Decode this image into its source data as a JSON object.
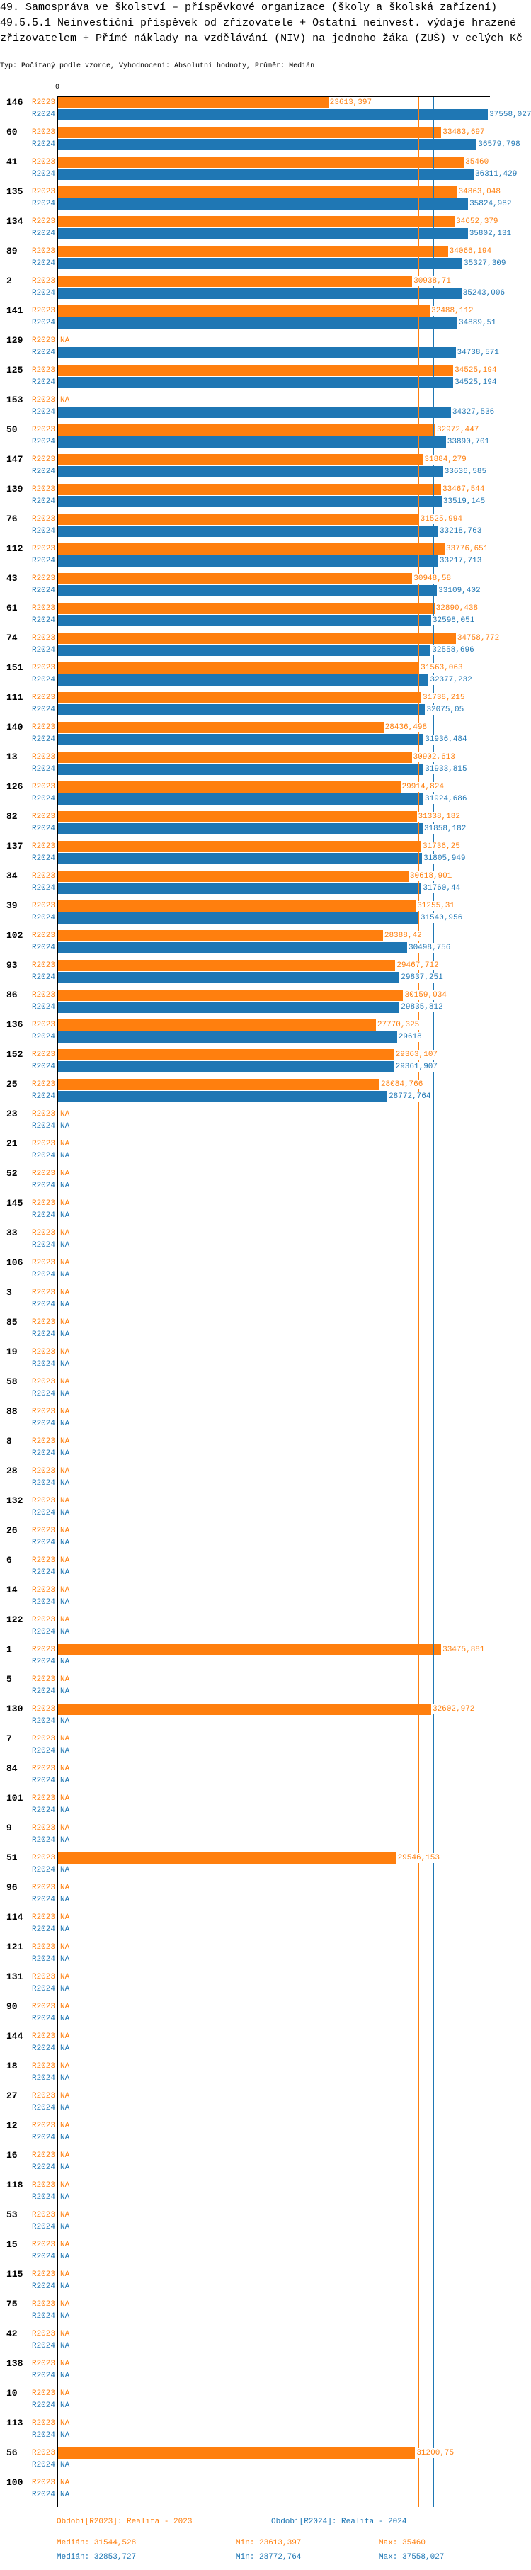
{
  "header": {
    "title": "49. Samospráva ve školství – příspěvkové organizace (školy a školská zařízení) 49.5.5.1 Neinvestiční příspěvek od zřizovatele + Ostatní neinvest. výdaje hrazené  zřizovatelem + Přímé náklady na vzdělávání (NIV) na jednoho žáka (ZUŠ) v celých Kč",
    "subtitle": "Typ: Počítaný podle vzorce, Vyhodnocení: Absolutní hodnoty, Průměr: Medián"
  },
  "chart_data": {
    "type": "bar",
    "orientation": "horizontal",
    "title": "49.5.5.1 Neinvestiční příspěvek od zřizovatele + Ostatní neinvest. výdaje hrazené zřizovatelem + Přímé náklady na vzdělávání (NIV) na jednoho žáka (ZUŠ) v celých Kč",
    "x_tick_label": "0",
    "xlim": [
      0,
      37800
    ],
    "na_label": "NA",
    "categories": [
      "146",
      "60",
      "41",
      "135",
      "134",
      "89",
      "2",
      "141",
      "129",
      "125",
      "153",
      "50",
      "147",
      "139",
      "76",
      "112",
      "43",
      "61",
      "74",
      "151",
      "111",
      "140",
      "13",
      "126",
      "82",
      "137",
      "34",
      "39",
      "102",
      "93",
      "86",
      "136",
      "152",
      "25",
      "23",
      "21",
      "52",
      "145",
      "33",
      "106",
      "3",
      "85",
      "19",
      "58",
      "88",
      "8",
      "28",
      "132",
      "26",
      "6",
      "14",
      "122",
      "1",
      "5",
      "130",
      "7",
      "84",
      "101",
      "9",
      "51",
      "96",
      "114",
      "121",
      "131",
      "90",
      "144",
      "18",
      "27",
      "12",
      "16",
      "118",
      "53",
      "15",
      "115",
      "75",
      "42",
      "138",
      "10",
      "113",
      "56",
      "100"
    ],
    "series": [
      {
        "name": "R2023",
        "color": "#ff7f0e",
        "legend": "Období[R2023]: Realita - 2023",
        "values": [
          23613.397,
          33483.697,
          35460,
          34863.048,
          34652.379,
          34066.194,
          30938.71,
          32488.112,
          null,
          34525.194,
          null,
          32972.447,
          31884.279,
          33467.544,
          31525.994,
          33776.651,
          30948.58,
          32890.438,
          34758.772,
          31563.063,
          31738.215,
          28436.498,
          30902.613,
          29914.824,
          31338.182,
          31736.25,
          30618.901,
          31255.31,
          28388.42,
          29467.712,
          30159.034,
          27770.325,
          29363.107,
          28084.766,
          null,
          null,
          null,
          null,
          null,
          null,
          null,
          null,
          null,
          null,
          null,
          null,
          null,
          null,
          null,
          null,
          null,
          null,
          33475.881,
          null,
          32602.972,
          null,
          null,
          null,
          null,
          29546.153,
          null,
          null,
          null,
          null,
          null,
          null,
          null,
          null,
          null,
          null,
          null,
          null,
          null,
          null,
          null,
          null,
          null,
          null,
          null,
          31200.75,
          null
        ],
        "stats": {
          "median": "Medián: 31544,528",
          "min": "Min: 23613,397",
          "max": "Max: 35460"
        },
        "median_value": 31544.528
      },
      {
        "name": "R2024",
        "color": "#1f77b4",
        "legend": "Období[R2024]: Realita - 2024",
        "values": [
          37558.027,
          36579.798,
          36311.429,
          35824.982,
          35802.131,
          35327.309,
          35243.006,
          34889.51,
          34738.571,
          34525.194,
          34327.536,
          33890.701,
          33636.585,
          33519.145,
          33218.763,
          33217.713,
          33109.402,
          32598.051,
          32558.696,
          32377.232,
          32075.05,
          31936.484,
          31933.815,
          31924.686,
          31858.182,
          31805.949,
          31760.44,
          31540.956,
          30498.756,
          29837.251,
          29835.812,
          29618,
          29361.907,
          28772.764,
          null,
          null,
          null,
          null,
          null,
          null,
          null,
          null,
          null,
          null,
          null,
          null,
          null,
          null,
          null,
          null,
          null,
          null,
          null,
          null,
          null,
          null,
          null,
          null,
          null,
          null,
          null,
          null,
          null,
          null,
          null,
          null,
          null,
          null,
          null,
          null,
          null,
          null,
          null,
          null,
          null,
          null,
          null,
          null,
          null,
          null,
          null
        ],
        "stats": {
          "median": "Medián: 32853,727",
          "min": "Min: 28772,764",
          "max": "Max: 37558,027"
        },
        "median_value": 32853.727
      }
    ]
  }
}
